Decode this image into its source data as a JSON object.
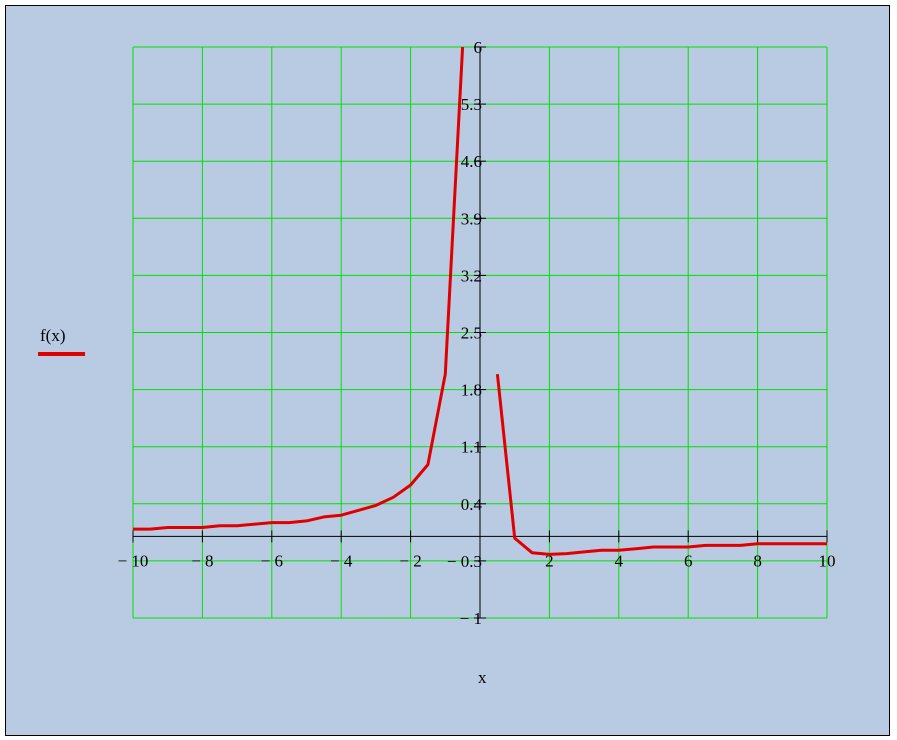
{
  "chart_data": {
    "type": "line",
    "xlabel": "x",
    "ylabel": "",
    "xlim": [
      -10,
      10
    ],
    "ylim": [
      -1,
      6
    ],
    "legend": {
      "label": "f(x)",
      "placement": "left",
      "color": "#e00000"
    },
    "x_ticks": [
      -10,
      -8,
      -6,
      -4,
      -2,
      0,
      2,
      4,
      6,
      8,
      10
    ],
    "x_tick_labels": [
      "− 10",
      "− 8",
      "− 6",
      "− 4",
      "− 2",
      "0",
      "2",
      "4",
      "6",
      "8",
      "10"
    ],
    "y_ticks": [
      -1,
      -0.3,
      0.4,
      1.1,
      1.8,
      2.5,
      3.2,
      3.9,
      4.6,
      5.3,
      6
    ],
    "y_tick_labels": [
      "− 1",
      "− 0.3",
      "0.4",
      "1.1",
      "1.8",
      "2.5",
      "3.2",
      "3.9",
      "4.6",
      "5.3",
      "6"
    ],
    "grid": true,
    "colors": {
      "background": "#b9cbe2",
      "grid": "#00e000",
      "line": "#e00000",
      "axis": "#000000"
    },
    "series": [
      {
        "name": "f(x)",
        "segments": [
          [
            [
              -10,
              0.09
            ],
            [
              -9.5,
              0.09
            ],
            [
              -9,
              0.11
            ],
            [
              -8,
              0.11
            ],
            [
              -7.5,
              0.13
            ],
            [
              -7,
              0.13
            ],
            [
              -6,
              0.17
            ],
            [
              -5.5,
              0.17
            ],
            [
              -5,
              0.19
            ],
            [
              -4.5,
              0.24
            ],
            [
              -4,
              0.26
            ],
            [
              -3.5,
              0.32
            ],
            [
              -3,
              0.38
            ],
            [
              -2.5,
              0.48
            ],
            [
              -2,
              0.63
            ],
            [
              -1.5,
              0.88
            ],
            [
              -1,
              1.99
            ],
            [
              -0.5,
              6
            ]
          ],
          [
            [
              0.5,
              1.99
            ],
            [
              1,
              -0.02
            ],
            [
              1.5,
              -0.2
            ],
            [
              2,
              -0.22
            ],
            [
              2.5,
              -0.21
            ],
            [
              3,
              -0.19
            ],
            [
              3.5,
              -0.17
            ],
            [
              4,
              -0.17
            ],
            [
              4.5,
              -0.15
            ],
            [
              5,
              -0.13
            ],
            [
              5.5,
              -0.13
            ],
            [
              6,
              -0.13
            ],
            [
              6.5,
              -0.11
            ],
            [
              7,
              -0.11
            ],
            [
              7.5,
              -0.11
            ],
            [
              8,
              -0.09
            ],
            [
              8.5,
              -0.09
            ],
            [
              9,
              -0.09
            ],
            [
              9.5,
              -0.09
            ],
            [
              10,
              -0.09
            ]
          ]
        ]
      }
    ]
  }
}
